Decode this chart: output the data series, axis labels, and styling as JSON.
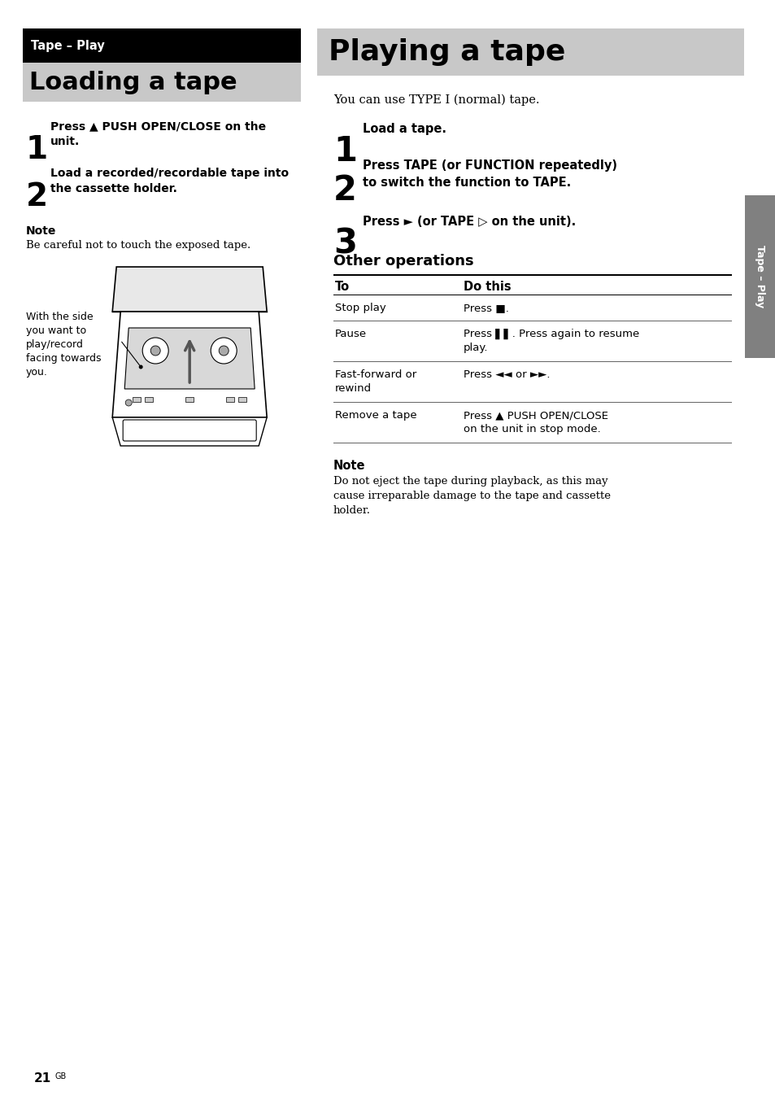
{
  "page_bg": "#ffffff",
  "tape_play_header_text": "Tape – Play",
  "loading_header_text": "Loading a tape",
  "playing_header_text": "Playing a tape",
  "step1_left_text": "Press ▲ PUSH OPEN/CLOSE on the\nunit.",
  "step2_left_text": "Load a recorded/recordable tape into\nthe cassette holder.",
  "note_left_title": "Note",
  "note_left_text": "Be careful not to touch the exposed tape.",
  "caption_text": "With the side\nyou want to\nplay/record\nfacing towards\nyou.",
  "step1_right_text": "Load a tape.",
  "step2_right_text": "Press TAPE (or FUNCTION repeatedly)\nto switch the function to TAPE.",
  "step3_right_text": "Press ► (or TAPE ▷ on the unit).",
  "other_ops_title": "Other operations",
  "table_col1_header": "To",
  "table_col2_header": "Do this",
  "note_right_title": "Note",
  "note_right_text": "Do not eject the tape during playback, as this may\ncause irreparable damage to the tape and cassette\nholder.",
  "sidebar_text": "Tape – Play",
  "page_num": "21",
  "intro_right_text": "You can use TYPE I (normal) tape."
}
